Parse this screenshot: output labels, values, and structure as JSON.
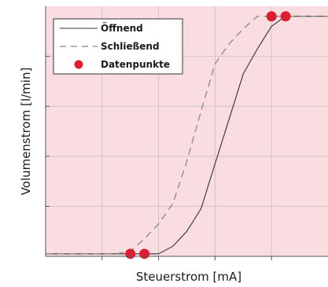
{
  "chart_data": {
    "type": "line",
    "xlabel": "Steuerstrom [mA]",
    "ylabel": "Volumenstrom [l/min]",
    "xlim": [
      0,
      10
    ],
    "ylim": [
      0,
      10
    ],
    "grid": true,
    "legend_position": "top-left",
    "series": [
      {
        "name": "Öffnend",
        "style": "solid",
        "color": "#333333",
        "x": [
          0,
          1.0,
          2.0,
          3.0,
          3.5,
          4.0,
          4.5,
          5.0,
          5.5,
          6.0,
          6.5,
          7.0,
          7.5,
          8.0,
          8.5,
          9.0,
          10.0
        ],
        "y": [
          0.1,
          0.1,
          0.1,
          0.1,
          0.1,
          0.1,
          0.4,
          1.0,
          1.9,
          3.7,
          5.5,
          7.3,
          8.3,
          9.2,
          9.6,
          9.6,
          9.6
        ]
      },
      {
        "name": "Schließend",
        "style": "dashed",
        "color": "#888888",
        "x": [
          0,
          1.0,
          2.0,
          2.5,
          3.0,
          3.5,
          4.0,
          4.5,
          5.0,
          5.5,
          6.0,
          6.5,
          7.0,
          7.5,
          8.0,
          9.0,
          10.0
        ],
        "y": [
          0.1,
          0.1,
          0.1,
          0.1,
          0.2,
          0.7,
          1.3,
          2.1,
          3.8,
          5.8,
          7.7,
          8.5,
          9.1,
          9.6,
          9.6,
          9.6,
          9.6
        ]
      },
      {
        "name": "Datenpunkte",
        "style": "markers",
        "color": "#dc1e32",
        "x": [
          3.0,
          3.5,
          8.0,
          8.5
        ],
        "y": [
          0.1,
          0.1,
          9.6,
          9.6
        ]
      }
    ]
  }
}
